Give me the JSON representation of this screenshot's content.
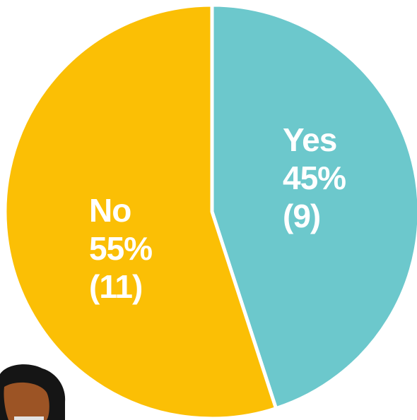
{
  "chart_data": {
    "type": "pie",
    "title": "",
    "slices": [
      {
        "name": "Yes",
        "percent_label": "45%",
        "count_label": "(9)",
        "value": 9,
        "color": "#6CC8CC"
      },
      {
        "name": "No",
        "percent_label": "55%",
        "count_label": "(11)",
        "value": 11,
        "color": "#FBBF05"
      }
    ],
    "start": "12 o'clock",
    "direction": "clockwise"
  },
  "decoration": {
    "illustration": "person-avatar"
  }
}
